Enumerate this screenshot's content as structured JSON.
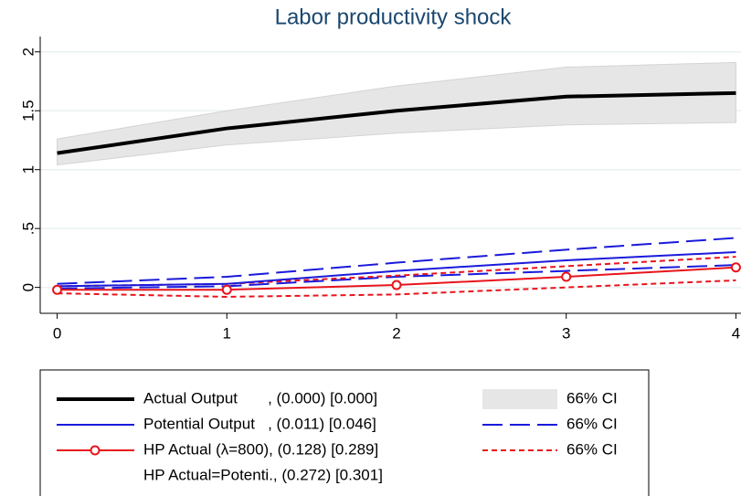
{
  "chart_data": {
    "type": "line",
    "title": "Labor productivity shock",
    "x": [
      0,
      1,
      2,
      3,
      4
    ],
    "xlim": [
      -0.1,
      4.03
    ],
    "xticks": [
      0,
      1,
      2,
      3,
      4
    ],
    "ylim": [
      -0.22,
      2.13
    ],
    "yticks": [
      0,
      {
        "value": 0.5,
        "label": ".5"
      },
      1,
      1.5,
      2
    ],
    "grid": true,
    "series": [
      {
        "name": "Actual Output       , (0.000) [0.000]",
        "color": "#000000",
        "style": "thick",
        "values": [
          1.14,
          1.35,
          1.5,
          1.62,
          1.65
        ],
        "ci": {
          "name": "66% CI",
          "style": "band",
          "color": "#e6e6e6",
          "lower": [
            1.04,
            1.21,
            1.31,
            1.38,
            1.4
          ],
          "upper": [
            1.26,
            1.5,
            1.71,
            1.87,
            1.91
          ]
        }
      },
      {
        "name": "Potential Output   , (0.011) [0.046]",
        "color": "#1a1adb",
        "style": "solid",
        "values": [
          0.01,
          0.03,
          0.14,
          0.23,
          0.3
        ],
        "ci": {
          "name": "66% CI",
          "style": "longdash",
          "color": "#1a1adb",
          "lower": [
            -0.01,
            0.01,
            0.09,
            0.14,
            0.19
          ],
          "upper": [
            0.03,
            0.09,
            0.21,
            0.32,
            0.42
          ]
        }
      },
      {
        "name": "HP Actual (λ=800), (0.128) [0.289]",
        "color": "#e8141c",
        "style": "markers",
        "values": [
          -0.02,
          -0.02,
          0.02,
          0.09,
          0.17
        ],
        "ci": {
          "name": "66% CI",
          "style": "shortdash",
          "color": "#e8141c",
          "lower": [
            -0.05,
            -0.08,
            -0.06,
            0.0,
            0.06
          ],
          "upper": [
            0.01,
            0.03,
            0.1,
            0.18,
            0.26
          ]
        }
      }
    ],
    "legend_notes": [
      "HP Actual=Potenti., (0.272) [0.301]"
    ]
  }
}
